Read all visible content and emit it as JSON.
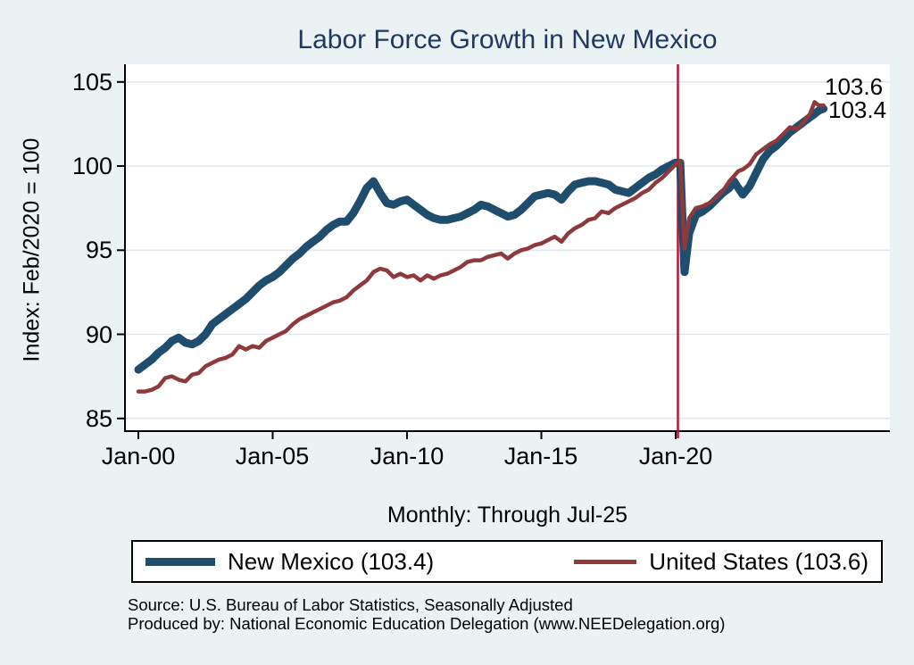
{
  "title": "Labor Force Growth in New Mexico",
  "colors": {
    "background": "#eaf2f3",
    "plot_background": "#ffffff",
    "gridline": "#dfe9ec",
    "axis": "#000000",
    "title": "#1f3864",
    "text": "#000000",
    "new_mexico_line": "#1f4d6d",
    "united_states_line": "#8e3a3d",
    "event_line": "#c11236"
  },
  "legend": {
    "items": [
      {
        "label": "New Mexico (103.4)"
      },
      {
        "label": "United States (103.6)"
      }
    ]
  },
  "footer": {
    "source_line1": "Source: U.S. Bureau of Labor Statistics, Seasonally Adjusted",
    "source_line2": "Produced by: National Economic Education Delegation (www.NEEDelegation.org)"
  },
  "chart_data": {
    "type": "line",
    "title": "Labor Force Growth in New Mexico",
    "xlabel": "Monthly: Through Jul-25",
    "ylabel": "Index: Feb/2020 = 100",
    "grid": true,
    "legend_position": "bottom",
    "ylim": [
      84.2,
      106.1
    ],
    "xlim": [
      1999.5,
      2028
    ],
    "yticks": [
      85,
      90,
      95,
      100,
      105
    ],
    "xticks": [
      {
        "label": "Jan-00",
        "x": 2000
      },
      {
        "label": "Jan-05",
        "x": 2005
      },
      {
        "label": "Jan-10",
        "x": 2010
      },
      {
        "label": "Jan-15",
        "x": 2015
      },
      {
        "label": "Jan-20",
        "x": 2020
      }
    ],
    "vline_x": 2020.083,
    "end_labels": [
      "103.6",
      "103.4"
    ],
    "x": [
      2000,
      2000.25,
      2000.5,
      2000.75,
      2001,
      2001.25,
      2001.5,
      2001.75,
      2002,
      2002.25,
      2002.5,
      2002.75,
      2003,
      2003.25,
      2003.5,
      2003.75,
      2004,
      2004.25,
      2004.5,
      2004.75,
      2005,
      2005.25,
      2005.5,
      2005.75,
      2006,
      2006.25,
      2006.5,
      2006.75,
      2007,
      2007.25,
      2007.5,
      2007.75,
      2008,
      2008.25,
      2008.5,
      2008.75,
      2009,
      2009.25,
      2009.5,
      2009.75,
      2010,
      2010.25,
      2010.5,
      2010.75,
      2011,
      2011.25,
      2011.5,
      2011.75,
      2012,
      2012.25,
      2012.5,
      2012.75,
      2013,
      2013.25,
      2013.5,
      2013.75,
      2014,
      2014.25,
      2014.5,
      2014.75,
      2015,
      2015.25,
      2015.5,
      2015.75,
      2016,
      2016.25,
      2016.5,
      2016.75,
      2017,
      2017.25,
      2017.5,
      2017.75,
      2018,
      2018.25,
      2018.5,
      2018.75,
      2019,
      2019.25,
      2019.5,
      2019.75,
      2020,
      2020.17,
      2020.33,
      2020.5,
      2020.75,
      2021,
      2021.25,
      2021.5,
      2021.75,
      2022,
      2022.17,
      2022.33,
      2022.5,
      2022.75,
      2023,
      2023.25,
      2023.5,
      2023.75,
      2024,
      2024.25,
      2024.5,
      2024.75,
      2025,
      2025.17,
      2025.33,
      2025.5
    ],
    "series": [
      {
        "id": "new-mexico",
        "name": "New Mexico (103.4)",
        "final_value": 103.4,
        "color": "#1f4d6d",
        "width": 9,
        "values": [
          87.9,
          88.2,
          88.5,
          88.9,
          89.2,
          89.6,
          89.8,
          89.5,
          89.4,
          89.6,
          90.0,
          90.6,
          90.9,
          91.2,
          91.5,
          91.8,
          92.1,
          92.5,
          92.9,
          93.2,
          93.4,
          93.7,
          94.1,
          94.5,
          94.8,
          95.2,
          95.5,
          95.8,
          96.2,
          96.5,
          96.7,
          96.7,
          97.2,
          97.9,
          98.7,
          99.1,
          98.4,
          97.8,
          97.7,
          97.9,
          98.0,
          97.7,
          97.4,
          97.1,
          96.9,
          96.8,
          96.8,
          96.9,
          97.0,
          97.2,
          97.4,
          97.7,
          97.6,
          97.4,
          97.2,
          97.0,
          97.1,
          97.4,
          97.8,
          98.2,
          98.3,
          98.4,
          98.3,
          98.0,
          98.5,
          98.9,
          99.0,
          99.1,
          99.1,
          99.0,
          98.9,
          98.6,
          98.5,
          98.4,
          98.7,
          99.0,
          99.3,
          99.5,
          99.8,
          100.0,
          100.2,
          100.2,
          93.7,
          96.0,
          97.1,
          97.3,
          97.6,
          98.0,
          98.4,
          98.7,
          99.1,
          98.7,
          98.3,
          98.8,
          99.6,
          100.4,
          100.9,
          101.2,
          101.6,
          102.0,
          102.3,
          102.6,
          102.9,
          103.1,
          103.3,
          103.4
        ]
      },
      {
        "id": "united-states",
        "name": "United States (103.6)",
        "final_value": 103.6,
        "color": "#8e3a3d",
        "width": 4.5,
        "values": [
          86.6,
          86.6,
          86.7,
          86.9,
          87.4,
          87.5,
          87.3,
          87.2,
          87.6,
          87.7,
          88.1,
          88.3,
          88.5,
          88.6,
          88.8,
          89.3,
          89.1,
          89.3,
          89.2,
          89.6,
          89.8,
          90.0,
          90.2,
          90.6,
          90.9,
          91.1,
          91.3,
          91.5,
          91.7,
          91.9,
          92.0,
          92.2,
          92.6,
          92.9,
          93.2,
          93.7,
          93.9,
          93.8,
          93.4,
          93.6,
          93.4,
          93.5,
          93.2,
          93.5,
          93.3,
          93.5,
          93.6,
          93.8,
          94.0,
          94.3,
          94.4,
          94.4,
          94.6,
          94.7,
          94.8,
          94.5,
          94.8,
          95.0,
          95.1,
          95.3,
          95.4,
          95.6,
          95.8,
          95.5,
          96.0,
          96.3,
          96.5,
          96.8,
          96.9,
          97.3,
          97.2,
          97.5,
          97.7,
          97.9,
          98.1,
          98.4,
          98.6,
          99.0,
          99.3,
          99.7,
          100.1,
          100.3,
          95.1,
          96.9,
          97.5,
          97.6,
          97.8,
          98.1,
          98.5,
          99.1,
          99.4,
          99.7,
          99.8,
          100.1,
          100.7,
          101.0,
          101.3,
          101.5,
          101.9,
          102.3,
          102.2,
          102.6,
          103.1,
          103.8,
          103.6,
          103.6
        ]
      }
    ]
  }
}
